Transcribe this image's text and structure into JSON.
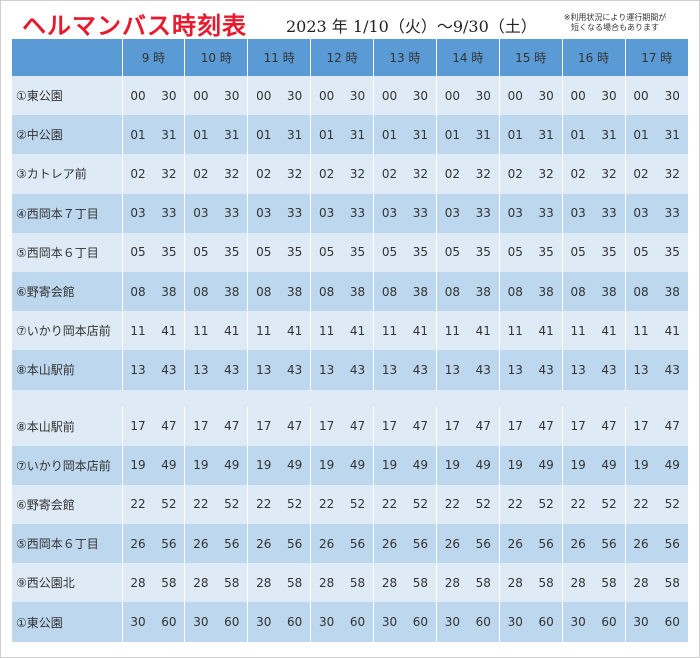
{
  "header": {
    "title": "ヘルマンバス時刻表",
    "period": "2023 年 1/10（火）～9/30（土）",
    "note_line1": "※利用状況により運行期間が",
    "note_line2": "短くなる場合もあります"
  },
  "hours": [
    "9 時",
    "10 時",
    "11 時",
    "12 時",
    "13 時",
    "14 時",
    "15 時",
    "16 時",
    "17 時"
  ],
  "rows": [
    {
      "stop": "①東公園",
      "a": "00",
      "b": "30",
      "shade": "light"
    },
    {
      "stop": "②中公園",
      "a": "01",
      "b": "31",
      "shade": "mid"
    },
    {
      "stop": "③カトレア前",
      "a": "02",
      "b": "32",
      "shade": "light"
    },
    {
      "stop": "④西岡本７丁目",
      "a": "03",
      "b": "33",
      "shade": "mid"
    },
    {
      "stop": "⑤西岡本６丁目",
      "a": "05",
      "b": "35",
      "shade": "light"
    },
    {
      "stop": "⑥野寄会館",
      "a": "08",
      "b": "38",
      "shade": "mid"
    },
    {
      "stop": "⑦いかり岡本店前",
      "a": "11",
      "b": "41",
      "shade": "light"
    },
    {
      "stop": "⑧本山駅前",
      "a": "13",
      "b": "43",
      "shade": "mid"
    },
    {
      "gap": true
    },
    {
      "stop": "⑧本山駅前",
      "a": "17",
      "b": "47",
      "shade": "light"
    },
    {
      "stop": "⑦いかり岡本店前",
      "a": "19",
      "b": "49",
      "shade": "mid"
    },
    {
      "stop": "⑥野寄会館",
      "a": "22",
      "b": "52",
      "shade": "light"
    },
    {
      "stop": "⑤西岡本６丁目",
      "a": "26",
      "b": "56",
      "shade": "mid"
    },
    {
      "stop": "⑨西公園北",
      "a": "28",
      "b": "58",
      "shade": "light"
    },
    {
      "stop": "①東公園",
      "a": "30",
      "b": "60",
      "shade": "mid"
    }
  ],
  "colors": {
    "title": "#e8192c",
    "header_bg": "#5b9bd5",
    "row_light": "#deebf7",
    "row_mid": "#bdd7ee"
  }
}
